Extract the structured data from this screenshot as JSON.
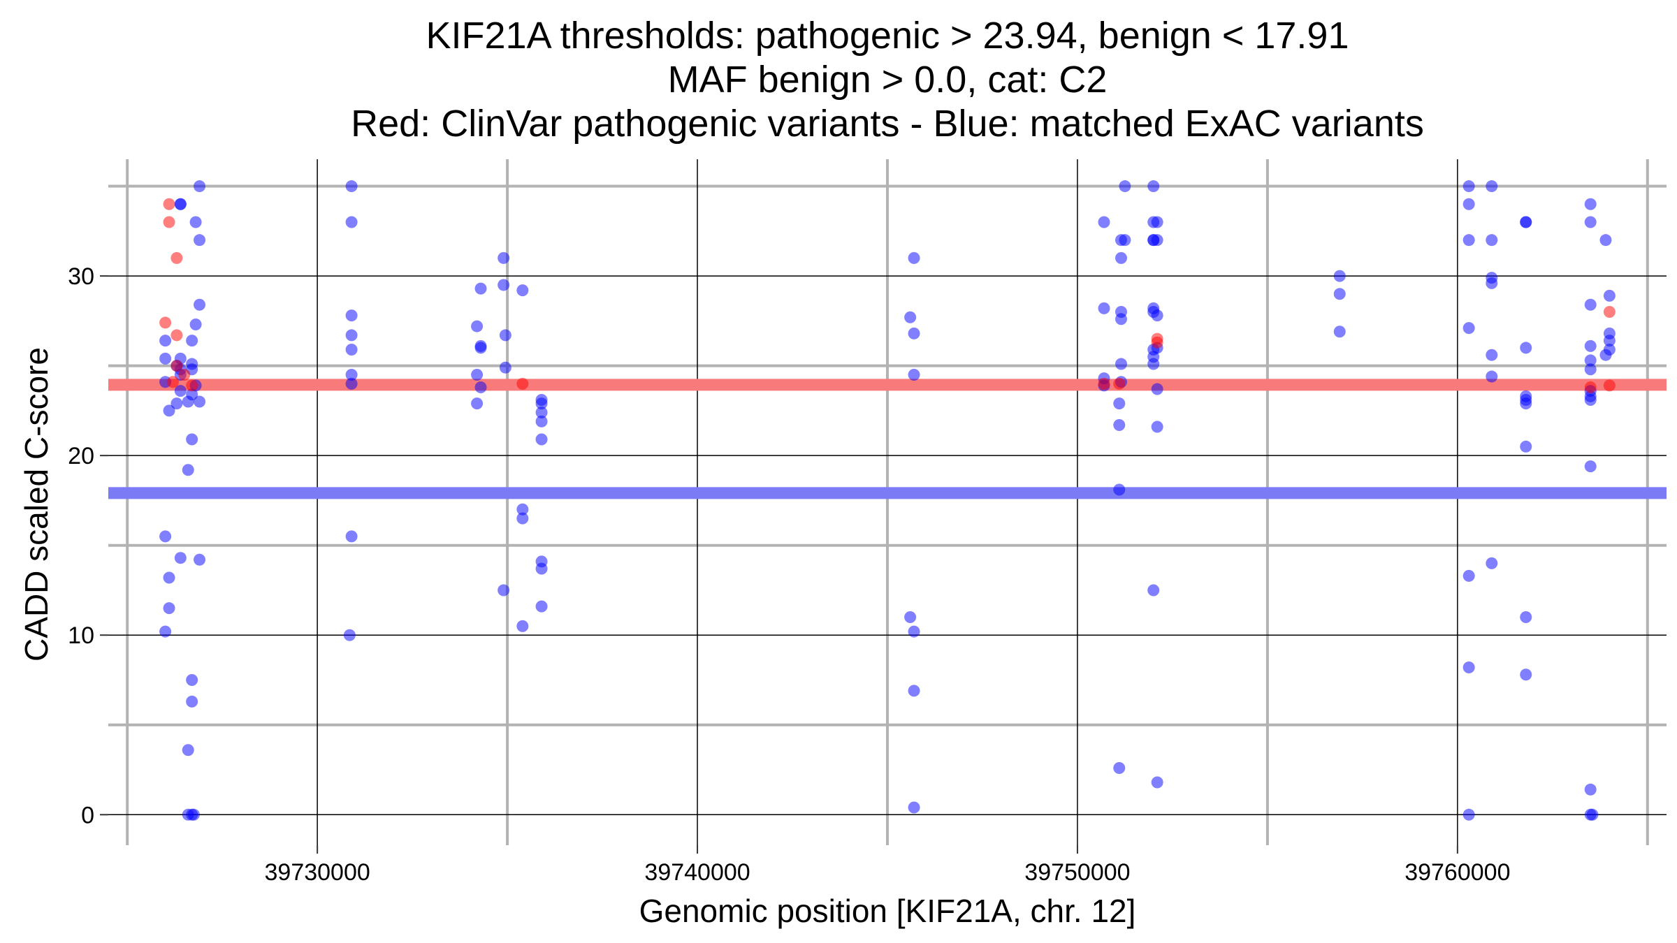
{
  "chart_data": {
    "type": "scatter",
    "title_lines": [
      "KIF21A thresholds: pathogenic > 23.94, benign < 17.91",
      "MAF benign > 0.0, cat: C2",
      "Red: ClinVar pathogenic variants - Blue: matched ExAC variants"
    ],
    "xlabel": "Genomic position [KIF21A, chr. 12]",
    "ylabel": "CADD scaled C-score",
    "xlim": [
      39724500,
      39765500
    ],
    "ylim": [
      -1.7,
      36.5
    ],
    "x_major_ticks": [
      39730000,
      39740000,
      39750000,
      39760000
    ],
    "x_major_tick_labels": [
      "39730000",
      "39740000",
      "39750000",
      "39760000"
    ],
    "x_minor_lines": [
      39725000,
      39735000,
      39745000,
      39755000,
      39765000
    ],
    "y_major_ticks": [
      0,
      10,
      20,
      30
    ],
    "y_major_tick_labels": [
      "0",
      "10",
      "20",
      "30"
    ],
    "y_minor_lines": [
      5,
      15,
      25,
      35
    ],
    "thresholds": {
      "pathogenic": 23.94,
      "benign": 17.91,
      "pathogenic_color": "#f87a7a",
      "benign_color": "#7b7bf5"
    },
    "colors": {
      "benign_points": "#0000ff",
      "pathogenic_points": "#ff0000",
      "minor_grid": "#b3b3b3",
      "major_grid": "#000000"
    },
    "series": [
      {
        "name": "matched ExAC variants",
        "color": "#0000ff",
        "points": [
          [
            39726000,
            26.4
          ],
          [
            39726000,
            25.4
          ],
          [
            39726000,
            24.1
          ],
          [
            39726000,
            15.5
          ],
          [
            39726000,
            10.2
          ],
          [
            39726100,
            22.5
          ],
          [
            39726100,
            13.2
          ],
          [
            39726100,
            11.5
          ],
          [
            39726300,
            22.9
          ],
          [
            39726300,
            25.0
          ],
          [
            39726400,
            25.4
          ],
          [
            39726400,
            24.8
          ],
          [
            39726400,
            24.5
          ],
          [
            39726400,
            34.0
          ],
          [
            39726400,
            34.0
          ],
          [
            39726400,
            23.6
          ],
          [
            39726400,
            14.3
          ],
          [
            39726600,
            23.0
          ],
          [
            39726600,
            19.2
          ],
          [
            39726600,
            3.6
          ],
          [
            39726600,
            0.0
          ],
          [
            39726700,
            26.4
          ],
          [
            39726700,
            25.1
          ],
          [
            39726700,
            24.8
          ],
          [
            39726700,
            23.4
          ],
          [
            39726700,
            20.9
          ],
          [
            39726700,
            7.5
          ],
          [
            39726700,
            6.3
          ],
          [
            39726700,
            0.0
          ],
          [
            39726750,
            0.0
          ],
          [
            39726800,
            33.0
          ],
          [
            39726800,
            27.3
          ],
          [
            39726800,
            23.9
          ],
          [
            39726900,
            35.0
          ],
          [
            39726900,
            32.0
          ],
          [
            39726900,
            28.4
          ],
          [
            39726900,
            23.0
          ],
          [
            39726900,
            14.2
          ],
          [
            39730900,
            35.0
          ],
          [
            39730900,
            33.0
          ],
          [
            39730900,
            27.8
          ],
          [
            39730900,
            26.7
          ],
          [
            39730900,
            25.9
          ],
          [
            39730900,
            24.5
          ],
          [
            39730900,
            24.0
          ],
          [
            39730900,
            15.5
          ],
          [
            39730850,
            10.0
          ],
          [
            39734200,
            27.2
          ],
          [
            39734200,
            24.5
          ],
          [
            39734200,
            22.9
          ],
          [
            39734300,
            29.3
          ],
          [
            39734300,
            26.1
          ],
          [
            39734300,
            26.0
          ],
          [
            39734300,
            23.8
          ],
          [
            39734900,
            31.0
          ],
          [
            39734900,
            29.5
          ],
          [
            39734900,
            12.5
          ],
          [
            39734950,
            26.7
          ],
          [
            39734950,
            24.9
          ],
          [
            39735400,
            29.2
          ],
          [
            39735400,
            17.0
          ],
          [
            39735400,
            16.5
          ],
          [
            39735400,
            10.5
          ],
          [
            39735900,
            23.1
          ],
          [
            39735900,
            22.9
          ],
          [
            39735900,
            22.4
          ],
          [
            39735900,
            21.9
          ],
          [
            39735900,
            20.9
          ],
          [
            39735900,
            14.1
          ],
          [
            39735900,
            13.7
          ],
          [
            39735900,
            11.6
          ],
          [
            39745600,
            27.7
          ],
          [
            39745600,
            11.0
          ],
          [
            39745700,
            31.0
          ],
          [
            39745700,
            26.8
          ],
          [
            39745700,
            24.5
          ],
          [
            39745700,
            10.2
          ],
          [
            39745700,
            6.9
          ],
          [
            39745700,
            0.4
          ],
          [
            39750700,
            33.0
          ],
          [
            39750700,
            28.2
          ],
          [
            39750700,
            24.3
          ],
          [
            39750700,
            23.9
          ],
          [
            39751100,
            22.9
          ],
          [
            39751100,
            21.7
          ],
          [
            39751100,
            18.1
          ],
          [
            39751100,
            2.6
          ],
          [
            39751150,
            32.0
          ],
          [
            39751150,
            31.0
          ],
          [
            39751150,
            28.0
          ],
          [
            39751150,
            27.6
          ],
          [
            39751150,
            25.1
          ],
          [
            39751150,
            24.1
          ],
          [
            39751250,
            35.0
          ],
          [
            39751250,
            32.0
          ],
          [
            39752000,
            35.0
          ],
          [
            39752000,
            33.0
          ],
          [
            39752000,
            32.0
          ],
          [
            39752000,
            32.0
          ],
          [
            39752000,
            28.2
          ],
          [
            39752000,
            28.0
          ],
          [
            39752000,
            25.9
          ],
          [
            39752000,
            25.5
          ],
          [
            39752000,
            25.1
          ],
          [
            39752000,
            12.5
          ],
          [
            39752100,
            33.0
          ],
          [
            39752100,
            32.0
          ],
          [
            39752100,
            27.8
          ],
          [
            39752100,
            26.0
          ],
          [
            39752100,
            23.7
          ],
          [
            39752100,
            21.6
          ],
          [
            39752100,
            1.8
          ],
          [
            39756900,
            30.0
          ],
          [
            39756900,
            29.0
          ],
          [
            39756900,
            26.9
          ],
          [
            39760300,
            35.0
          ],
          [
            39760300,
            34.0
          ],
          [
            39760300,
            32.0
          ],
          [
            39760300,
            27.1
          ],
          [
            39760300,
            13.3
          ],
          [
            39760300,
            8.2
          ],
          [
            39760300,
            0.0
          ],
          [
            39760900,
            35.0
          ],
          [
            39760900,
            32.0
          ],
          [
            39760900,
            29.9
          ],
          [
            39760900,
            29.6
          ],
          [
            39760900,
            25.6
          ],
          [
            39760900,
            24.4
          ],
          [
            39760900,
            14.0
          ],
          [
            39761800,
            33.0
          ],
          [
            39761800,
            33.0
          ],
          [
            39761800,
            26.0
          ],
          [
            39761800,
            23.3
          ],
          [
            39761800,
            23.1
          ],
          [
            39761800,
            22.9
          ],
          [
            39761800,
            20.5
          ],
          [
            39761800,
            11.0
          ],
          [
            39761800,
            7.8
          ],
          [
            39763500,
            34.0
          ],
          [
            39763500,
            33.0
          ],
          [
            39763500,
            28.4
          ],
          [
            39763500,
            26.1
          ],
          [
            39763500,
            25.3
          ],
          [
            39763500,
            24.8
          ],
          [
            39763500,
            23.6
          ],
          [
            39763500,
            23.3
          ],
          [
            39763500,
            23.1
          ],
          [
            39763500,
            19.4
          ],
          [
            39763500,
            1.4
          ],
          [
            39763500,
            0.0
          ],
          [
            39763550,
            0.0
          ],
          [
            39763900,
            32.0
          ],
          [
            39763900,
            25.6
          ],
          [
            39764000,
            28.9
          ],
          [
            39764000,
            26.8
          ],
          [
            39764000,
            26.4
          ],
          [
            39764000,
            25.9
          ]
        ]
      },
      {
        "name": "ClinVar pathogenic variants",
        "color": "#ff0000",
        "points": [
          [
            39726000,
            27.4
          ],
          [
            39726100,
            34.0
          ],
          [
            39726100,
            33.0
          ],
          [
            39726200,
            24.1
          ],
          [
            39726300,
            31.0
          ],
          [
            39726300,
            26.7
          ],
          [
            39726300,
            25.0
          ],
          [
            39726500,
            24.5
          ],
          [
            39726700,
            23.9
          ],
          [
            39735400,
            24.0
          ],
          [
            39750700,
            24.0
          ],
          [
            39751100,
            24.0
          ],
          [
            39752100,
            26.5
          ],
          [
            39752100,
            26.3
          ],
          [
            39763500,
            23.8
          ],
          [
            39764000,
            28.0
          ],
          [
            39764000,
            23.9
          ]
        ]
      }
    ]
  }
}
